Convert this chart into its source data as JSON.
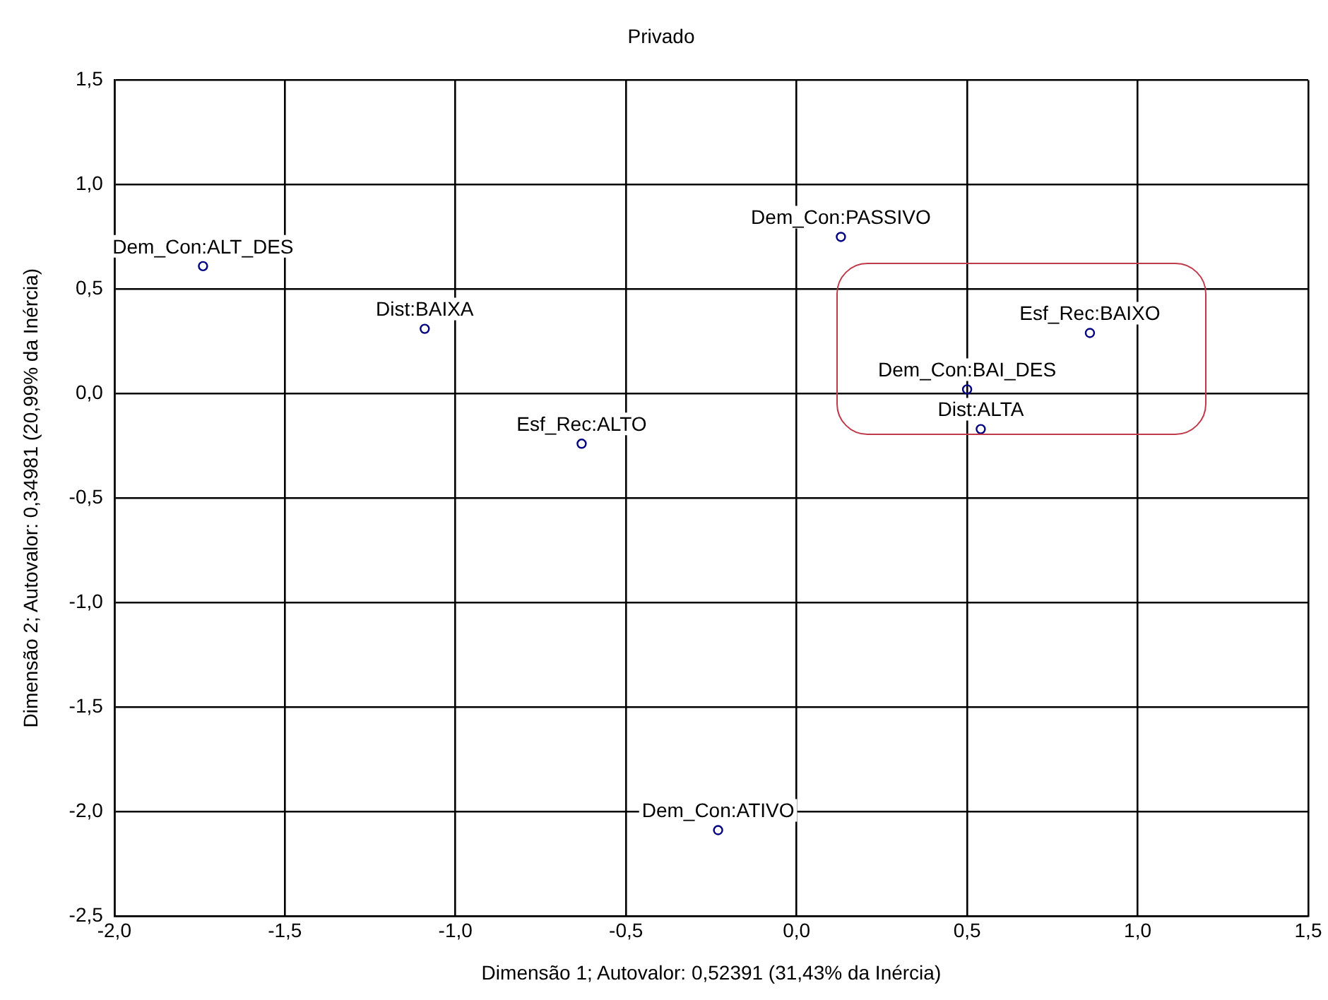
{
  "chart_data": {
    "type": "scatter",
    "title": "Privado",
    "xlabel": "Dimensão 1; Autovalor: 0,52391 (31,43% da Inércia)",
    "ylabel": "Dimensão 2; Autovalor: 0,34981 (20,99% da Inércia)",
    "x": [
      -1.74,
      -1.09,
      -0.63,
      0.13,
      0.86,
      0.5,
      0.54,
      -0.23
    ],
    "series": [
      {
        "color": "#000080",
        "values": [
          0.61,
          0.31,
          -0.24,
          0.75,
          0.29,
          0.02,
          -0.17,
          -2.09
        ]
      }
    ],
    "marker": "circle",
    "grid": true,
    "legend": false,
    "xlim": [
      -2,
      1.5
    ],
    "ylim": [
      -2.5,
      1.5
    ],
    "xticks": [
      {
        "value": -2,
        "label": "-2,0"
      },
      {
        "value": -1.5,
        "label": "-1,5"
      },
      {
        "value": -1,
        "label": "-1,0"
      },
      {
        "value": -0.5,
        "label": "-0,5"
      },
      {
        "value": 0,
        "label": "0,0"
      },
      {
        "value": 0.5,
        "label": "0,5"
      },
      {
        "value": 1,
        "label": "1,0"
      },
      {
        "value": 1.5,
        "label": "1,5"
      }
    ],
    "yticks": [
      {
        "value": -2.5,
        "label": "-2,5"
      },
      {
        "value": -2,
        "label": "-2,0"
      },
      {
        "value": -1.5,
        "label": "-1,5"
      },
      {
        "value": -1,
        "label": "-1,0"
      },
      {
        "value": -0.5,
        "label": "-0,5"
      },
      {
        "value": 0,
        "label": "0,0"
      },
      {
        "value": 0.5,
        "label": "0,5"
      },
      {
        "value": 1,
        "label": "1,0"
      },
      {
        "value": 1.5,
        "label": "1,5"
      }
    ],
    "annotations": [
      {
        "text": "Dem_Con:ALT_DES",
        "x": -1.74,
        "y": 0.61
      },
      {
        "text": "Dist:BAIXA",
        "x": -1.09,
        "y": 0.31
      },
      {
        "text": "Esf_Rec:ALTO",
        "x": -0.63,
        "y": -0.24
      },
      {
        "text": "Dem_Con:PASSIVO",
        "x": 0.13,
        "y": 0.75
      },
      {
        "text": "Esf_Rec:BAIXO",
        "x": 0.86,
        "y": 0.29
      },
      {
        "text": "Dem_Con:BAI_DES",
        "x": 0.5,
        "y": 0.02
      },
      {
        "text": "Dist:ALTA",
        "x": 0.54,
        "y": -0.17
      },
      {
        "text": "Dem_Con:ATIVO",
        "x": -0.23,
        "y": -2.09
      }
    ]
  }
}
